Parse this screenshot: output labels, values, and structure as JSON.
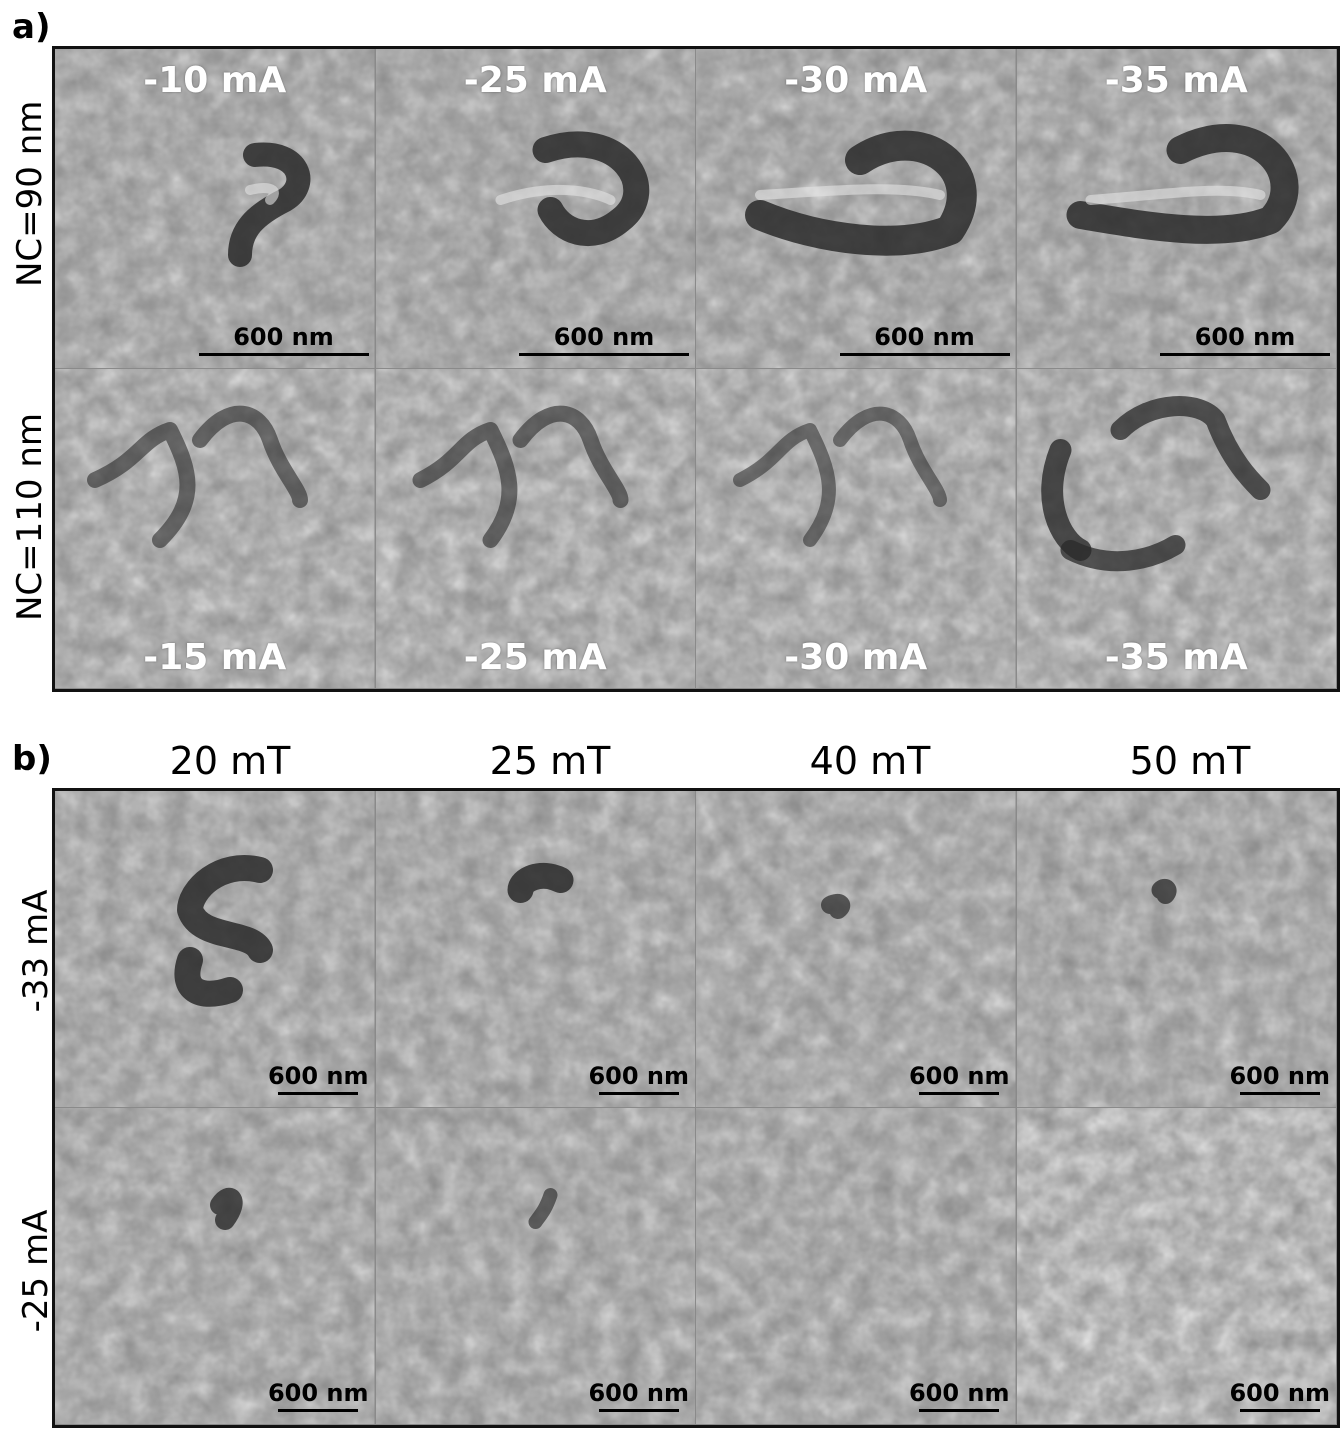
{
  "panel_a": {
    "letter": "a)",
    "row_labels": [
      "NC=90 nm",
      "NC=110 nm"
    ],
    "rows": [
      {
        "tiles": [
          {
            "current": "-10 mA",
            "scale": "600 nm"
          },
          {
            "current": "-25 mA",
            "scale": "600 nm"
          },
          {
            "current": "-30 mA",
            "scale": "600 nm"
          },
          {
            "current": "-35 mA",
            "scale": "600 nm"
          }
        ]
      },
      {
        "tiles": [
          {
            "current": "-15 mA"
          },
          {
            "current": "-25 mA"
          },
          {
            "current": "-30 mA"
          },
          {
            "current": "-35 mA"
          }
        ]
      }
    ]
  },
  "panel_b": {
    "letter": "b)",
    "column_headers": [
      "20 mT",
      "25 mT",
      "40 mT",
      "50 mT"
    ],
    "row_labels": [
      "-33 mA",
      "-25 mA"
    ],
    "rows": [
      {
        "tiles": [
          {
            "scale": "600 nm"
          },
          {
            "scale": "600 nm"
          },
          {
            "scale": "600 nm"
          },
          {
            "scale": "600 nm"
          }
        ]
      },
      {
        "tiles": [
          {
            "scale": "600 nm"
          },
          {
            "scale": "600 nm"
          },
          {
            "scale": "600 nm"
          },
          {
            "scale": "600 nm"
          }
        ]
      }
    ]
  }
}
